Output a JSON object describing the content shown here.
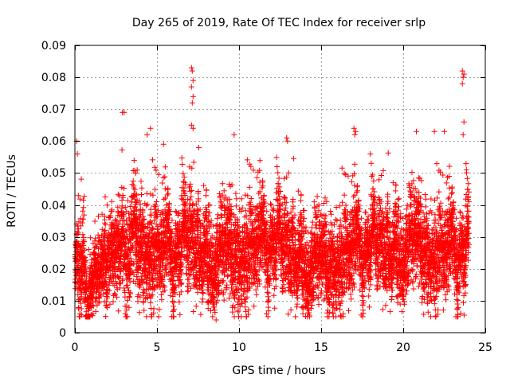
{
  "chart_data": {
    "type": "scatter",
    "title": "Day 265 of 2019, Rate Of TEC Index for receiver srlp",
    "xlabel": "GPS time / hours",
    "ylabel": "ROTI / TECUs",
    "xlim": [
      0,
      25
    ],
    "ylim": [
      0,
      0.09
    ],
    "x_ticks": [
      0,
      5,
      10,
      15,
      20,
      25
    ],
    "x_tick_labels": [
      "0",
      "5",
      "10",
      "15",
      "20",
      "25"
    ],
    "y_ticks": [
      0,
      0.01,
      0.02,
      0.03,
      0.04,
      0.05,
      0.06,
      0.07,
      0.08,
      0.09
    ],
    "y_tick_labels": [
      "0",
      "0.01",
      "0.02",
      "0.03",
      "0.04",
      "0.05",
      "0.06",
      "0.07",
      "0.08",
      "0.09"
    ],
    "grid": true,
    "marker": "+",
    "color": "#ff0000",
    "series": [
      {
        "name": "ROTI",
        "seed": 2019265,
        "profile_hours": [
          0,
          0.3,
          1,
          2,
          3,
          4,
          5,
          6,
          7,
          8,
          9,
          10,
          11,
          12,
          13,
          14,
          15,
          16,
          17,
          18,
          19,
          20,
          21,
          22,
          23,
          24
        ],
        "profile_median": [
          0.018,
          0.02,
          0.016,
          0.019,
          0.026,
          0.027,
          0.024,
          0.022,
          0.025,
          0.022,
          0.021,
          0.024,
          0.025,
          0.025,
          0.022,
          0.02,
          0.018,
          0.022,
          0.024,
          0.023,
          0.023,
          0.024,
          0.025,
          0.024,
          0.023,
          0.022
        ],
        "profile_spread": [
          0.006,
          0.009,
          0.005,
          0.007,
          0.009,
          0.009,
          0.008,
          0.008,
          0.009,
          0.008,
          0.008,
          0.009,
          0.008,
          0.008,
          0.008,
          0.008,
          0.007,
          0.008,
          0.008,
          0.007,
          0.008,
          0.008,
          0.008,
          0.008,
          0.008,
          0.008
        ],
        "samples_per_hour": 300,
        "spikes": [
          {
            "x": 0.1,
            "y": 0.06
          },
          {
            "x": 0.15,
            "y": 0.056
          },
          {
            "x": 2.9,
            "y": 0.069
          },
          {
            "x": 3.0,
            "y": 0.069
          },
          {
            "x": 4.6,
            "y": 0.064
          },
          {
            "x": 4.4,
            "y": 0.062
          },
          {
            "x": 5.4,
            "y": 0.059
          },
          {
            "x": 7.1,
            "y": 0.083
          },
          {
            "x": 7.15,
            "y": 0.082
          },
          {
            "x": 7.2,
            "y": 0.079
          },
          {
            "x": 7.1,
            "y": 0.077
          },
          {
            "x": 7.2,
            "y": 0.074
          },
          {
            "x": 7.15,
            "y": 0.072
          },
          {
            "x": 7.1,
            "y": 0.065
          },
          {
            "x": 7.2,
            "y": 0.064
          },
          {
            "x": 9.7,
            "y": 0.062
          },
          {
            "x": 12.9,
            "y": 0.061
          },
          {
            "x": 12.95,
            "y": 0.06
          },
          {
            "x": 17.0,
            "y": 0.064
          },
          {
            "x": 17.1,
            "y": 0.063
          },
          {
            "x": 17.05,
            "y": 0.062
          },
          {
            "x": 18.0,
            "y": 0.056
          },
          {
            "x": 20.8,
            "y": 0.063
          },
          {
            "x": 21.9,
            "y": 0.063
          },
          {
            "x": 22.5,
            "y": 0.063
          },
          {
            "x": 23.6,
            "y": 0.082
          },
          {
            "x": 23.7,
            "y": 0.081
          },
          {
            "x": 23.65,
            "y": 0.08
          },
          {
            "x": 23.6,
            "y": 0.078
          },
          {
            "x": 23.7,
            "y": 0.066
          },
          {
            "x": 23.65,
            "y": 0.062
          },
          {
            "x": 23.85,
            "y": 0.051
          },
          {
            "x": 8.6,
            "y": 0.004
          },
          {
            "x": 5.1,
            "y": 0.005
          },
          {
            "x": 23.5,
            "y": 0.006
          },
          {
            "x": 1.1,
            "y": 0.006
          }
        ]
      }
    ]
  }
}
